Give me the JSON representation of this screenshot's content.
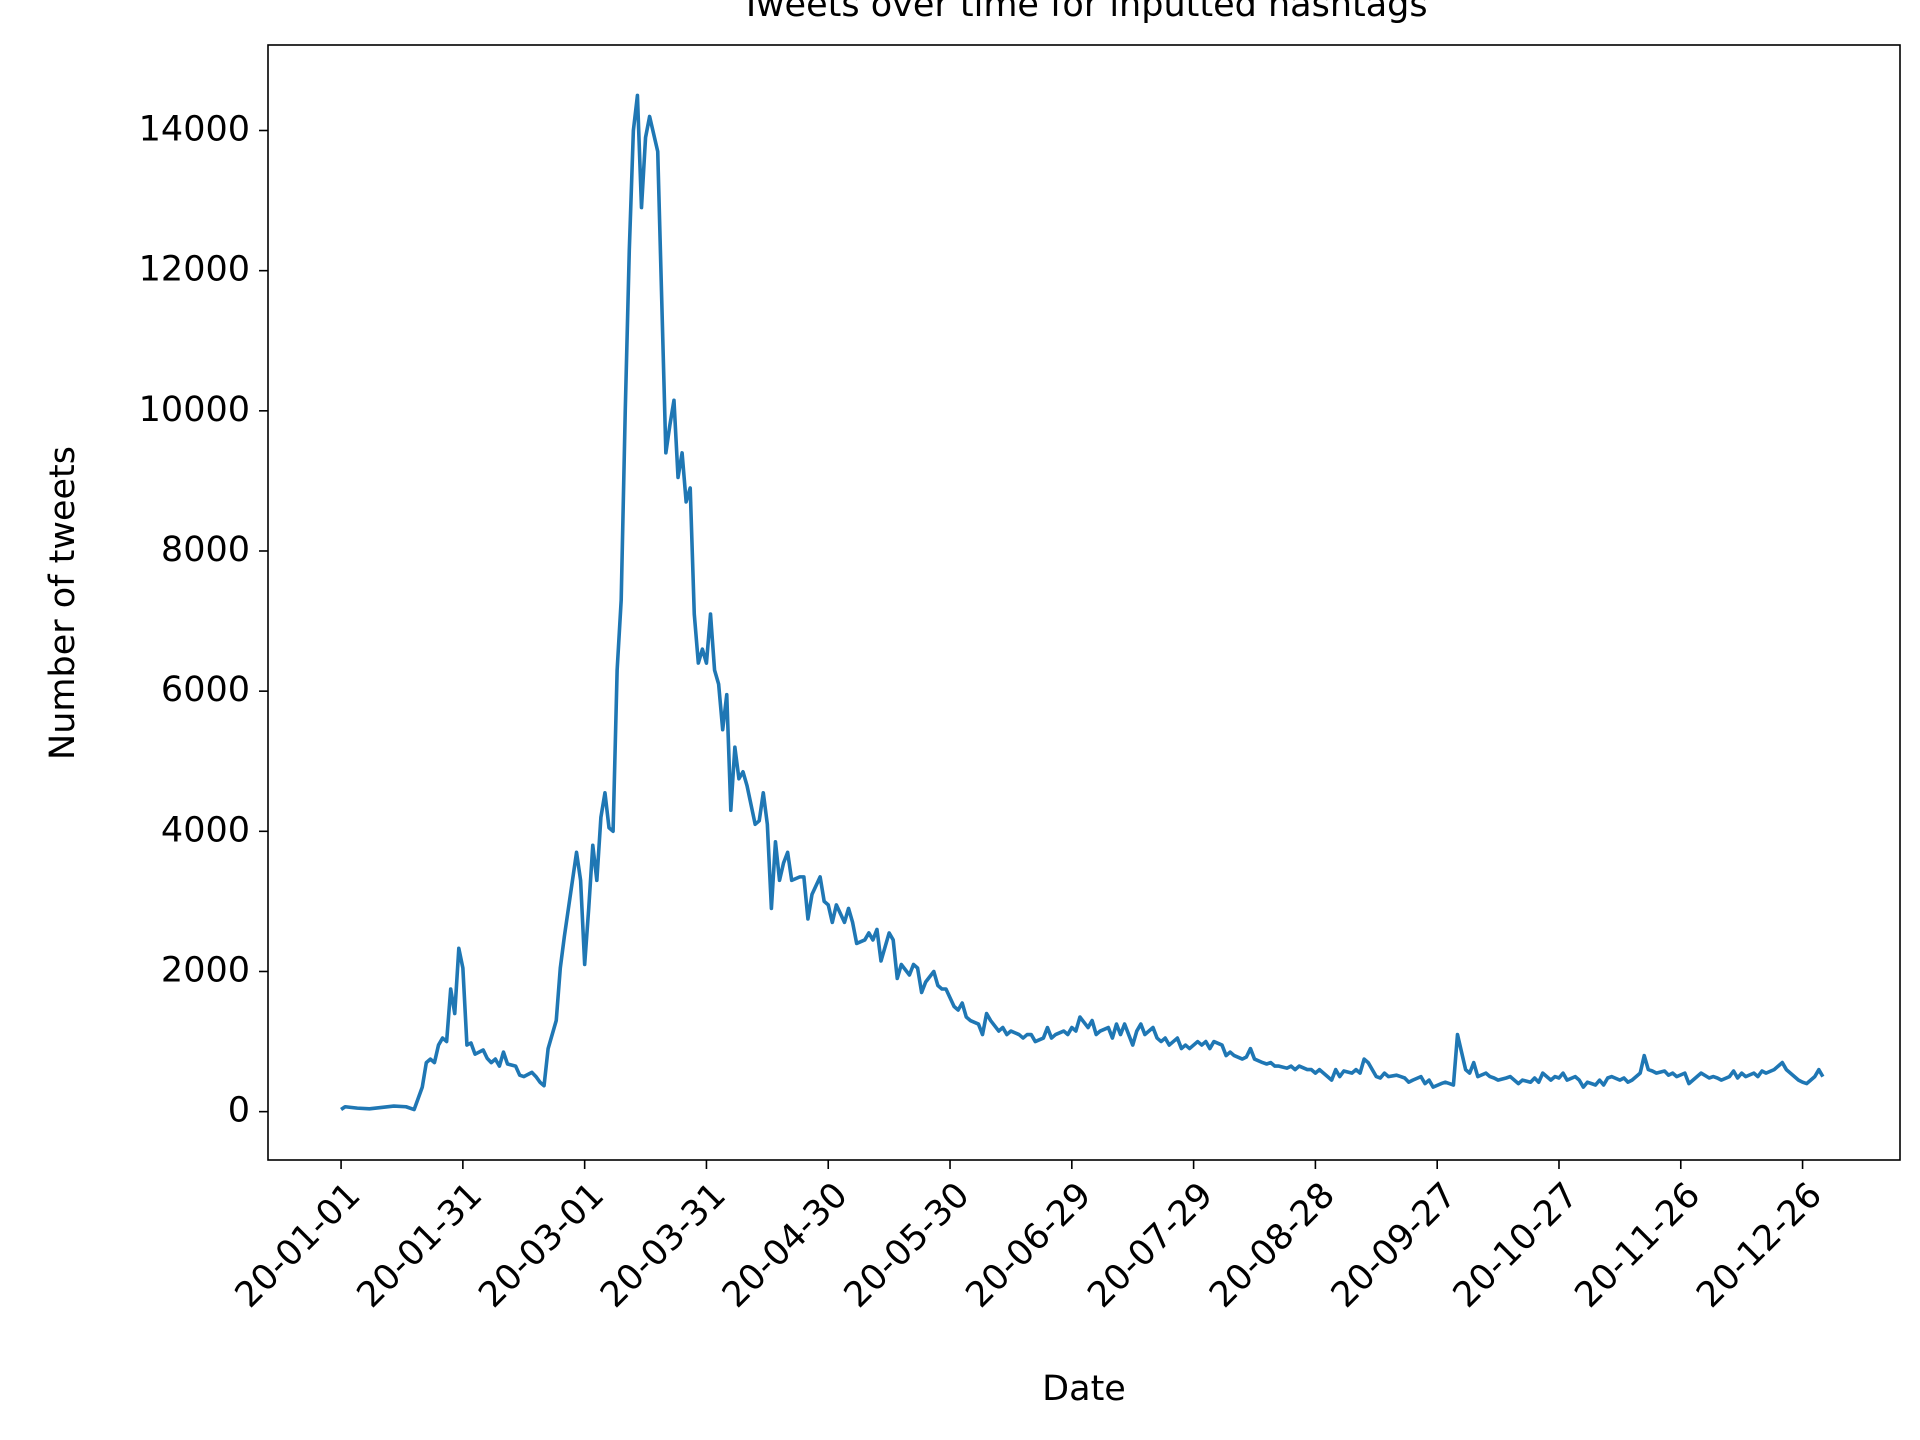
{
  "chart_data": {
    "type": "line",
    "title": "Tweets over time for inputted hashtags",
    "xlabel": "Date",
    "ylabel": "Number of tweets",
    "color": "#1f77b4",
    "xlim": [
      "19-12-14",
      "21-01-19"
    ],
    "xticks": [
      "20-01-01",
      "20-01-31",
      "20-03-01",
      "20-03-31",
      "20-04-30",
      "20-05-30",
      "20-06-29",
      "20-07-29",
      "20-08-28",
      "20-09-27",
      "20-10-27",
      "20-11-26",
      "20-12-26"
    ],
    "ylim": [
      -690,
      15220
    ],
    "yticks": [
      0,
      2000,
      4000,
      6000,
      8000,
      10000,
      12000,
      14000
    ],
    "x": [
      "20-01-01",
      "20-01-02",
      "20-01-05",
      "20-01-08",
      "20-01-11",
      "20-01-14",
      "20-01-17",
      "20-01-19",
      "20-01-21",
      "20-01-22",
      "20-01-23",
      "20-01-24",
      "20-01-25",
      "20-01-26",
      "20-01-27",
      "20-01-28",
      "20-01-29",
      "20-01-30",
      "20-01-31",
      "20-02-01",
      "20-02-02",
      "20-02-03",
      "20-02-05",
      "20-02-06",
      "20-02-07",
      "20-02-08",
      "20-02-09",
      "20-02-10",
      "20-02-11",
      "20-02-13",
      "20-02-14",
      "20-02-15",
      "20-02-17",
      "20-02-18",
      "20-02-19",
      "20-02-20",
      "20-02-21",
      "20-02-23",
      "20-02-24",
      "20-02-25",
      "20-02-27",
      "20-02-28",
      "20-02-29",
      "20-03-01",
      "20-03-02",
      "20-03-03",
      "20-03-04",
      "20-03-05",
      "20-03-06",
      "20-03-07",
      "20-03-08",
      "20-03-09",
      "20-03-10",
      "20-03-11",
      "20-03-12",
      "20-03-13",
      "20-03-14",
      "20-03-15",
      "20-03-16",
      "20-03-17",
      "20-03-19",
      "20-03-21",
      "20-03-22",
      "20-03-23",
      "20-03-24",
      "20-03-25",
      "20-03-26",
      "20-03-27",
      "20-03-28",
      "20-03-29",
      "20-03-30",
      "20-03-31",
      "20-04-01",
      "20-04-02",
      "20-04-03",
      "20-04-04",
      "20-04-05",
      "20-04-06",
      "20-04-07",
      "20-04-08",
      "20-04-09",
      "20-04-10",
      "20-04-12",
      "20-04-13",
      "20-04-14",
      "20-04-15",
      "20-04-16",
      "20-04-17",
      "20-04-18",
      "20-04-19",
      "20-04-20",
      "20-04-21",
      "20-04-23",
      "20-04-24",
      "20-04-25",
      "20-04-26",
      "20-04-28",
      "20-04-29",
      "20-04-30",
      "20-05-01",
      "20-05-02",
      "20-05-04",
      "20-05-05",
      "20-05-06",
      "20-05-07",
      "20-05-09",
      "20-05-10",
      "20-05-11",
      "20-05-12",
      "20-05-13",
      "20-05-15",
      "20-05-16",
      "20-05-17",
      "20-05-18",
      "20-05-20",
      "20-05-21",
      "20-05-22",
      "20-05-23",
      "20-05-24",
      "20-05-26",
      "20-05-27",
      "20-05-28",
      "20-05-29",
      "20-05-31",
      "20-06-01",
      "20-06-02",
      "20-06-03",
      "20-06-04",
      "20-06-06",
      "20-06-07",
      "20-06-08",
      "20-06-09",
      "20-06-11",
      "20-06-12",
      "20-06-13",
      "20-06-14",
      "20-06-16",
      "20-06-17",
      "20-06-18",
      "20-06-19",
      "20-06-20",
      "20-06-22",
      "20-06-23",
      "20-06-24",
      "20-06-25",
      "20-06-27",
      "20-06-28",
      "20-06-29",
      "20-06-30",
      "20-07-01",
      "20-07-03",
      "20-07-04",
      "20-07-05",
      "20-07-06",
      "20-07-08",
      "20-07-09",
      "20-07-10",
      "20-07-11",
      "20-07-12",
      "20-07-14",
      "20-07-15",
      "20-07-16",
      "20-07-17",
      "20-07-19",
      "20-07-20",
      "20-07-21",
      "20-07-22",
      "20-07-23",
      "20-07-25",
      "20-07-26",
      "20-07-27",
      "20-07-28",
      "20-07-30",
      "20-07-31",
      "20-08-01",
      "20-08-02",
      "20-08-03",
      "20-08-05",
      "20-08-06",
      "20-08-07",
      "20-08-08",
      "20-08-10",
      "20-08-11",
      "20-08-12",
      "20-08-13",
      "20-08-15",
      "20-08-16",
      "20-08-17",
      "20-08-18",
      "20-08-19",
      "20-08-21",
      "20-08-22",
      "20-08-23",
      "20-08-24",
      "20-08-26",
      "20-08-27",
      "20-08-28",
      "20-08-29",
      "20-08-30",
      "20-09-01",
      "20-09-02",
      "20-09-03",
      "20-09-04",
      "20-09-06",
      "20-09-07",
      "20-09-08",
      "20-09-09",
      "20-09-10",
      "20-09-12",
      "20-09-13",
      "20-09-14",
      "20-09-15",
      "20-09-17",
      "20-09-18",
      "20-09-19",
      "20-09-20",
      "20-09-21",
      "20-09-23",
      "20-09-24",
      "20-09-25",
      "20-09-26",
      "20-09-28",
      "20-09-29",
      "20-09-30",
      "20-10-01",
      "20-10-02",
      "20-10-04",
      "20-10-05",
      "20-10-06",
      "20-10-07",
      "20-10-09",
      "20-10-10",
      "20-10-11",
      "20-10-12",
      "20-10-14",
      "20-10-15",
      "20-10-16",
      "20-10-17",
      "20-10-18",
      "20-10-20",
      "20-10-21",
      "20-10-22",
      "20-10-23",
      "20-10-25",
      "20-10-26",
      "20-10-27",
      "20-10-28",
      "20-10-29",
      "20-10-31",
      "20-11-01",
      "20-11-02",
      "20-11-03",
      "20-11-05",
      "20-11-06",
      "20-11-07",
      "20-11-08",
      "20-11-09",
      "20-11-11",
      "20-11-12",
      "20-11-13",
      "20-11-14",
      "20-11-16",
      "20-11-17",
      "20-11-18",
      "20-11-19",
      "20-11-20",
      "20-11-22",
      "20-11-23",
      "20-11-24",
      "20-11-25",
      "20-11-27",
      "20-11-28",
      "20-11-29",
      "20-11-30",
      "20-12-01",
      "20-12-03",
      "20-12-04",
      "20-12-05",
      "20-12-06",
      "20-12-08",
      "20-12-09",
      "20-12-10",
      "20-12-11",
      "20-12-12",
      "20-12-14",
      "20-12-15",
      "20-12-16",
      "20-12-17",
      "20-12-19",
      "20-12-20",
      "20-12-21",
      "20-12-22",
      "20-12-24",
      "20-12-25",
      "20-12-26",
      "20-12-27",
      "20-12-28",
      "20-12-29",
      "20-12-30",
      "20-12-31"
    ],
    "values": [
      30,
      70,
      50,
      40,
      60,
      80,
      70,
      30,
      350,
      700,
      750,
      700,
      950,
      1050,
      1000,
      1750,
      1400,
      2330,
      2050,
      950,
      980,
      820,
      880,
      760,
      700,
      750,
      650,
      850,
      680,
      650,
      520,
      500,
      560,
      500,
      420,
      370,
      900,
      1300,
      2050,
      2500,
      3300,
      3700,
      3300,
      2100,
      2900,
      3800,
      3300,
      4200,
      4550,
      4050,
      4000,
      6300,
      7300,
      10000,
      12300,
      14000,
      14500,
      12900,
      13900,
      14200,
      13700,
      9400,
      9800,
      10150,
      9050,
      9400,
      8700,
      8900,
      7100,
      6400,
      6600,
      6400,
      7100,
      6300,
      6100,
      5450,
      5950,
      4300,
      5200,
      4750,
      4850,
      4650,
      4100,
      4150,
      4550,
      4100,
      2900,
      3850,
      3300,
      3550,
      3700,
      3300,
      3350,
      3350,
      2750,
      3100,
      3350,
      3000,
      2950,
      2700,
      2950,
      2700,
      2900,
      2700,
      2400,
      2450,
      2550,
      2450,
      2600,
      2150,
      2550,
      2450,
      1900,
      2100,
      1950,
      2100,
      2050,
      1700,
      1850,
      2000,
      1800,
      1750,
      1750,
      1500,
      1450,
      1550,
      1350,
      1300,
      1250,
      1100,
      1400,
      1300,
      1150,
      1200,
      1100,
      1150,
      1100,
      1050,
      1100,
      1100,
      1000,
      1050,
      1200,
      1050,
      1100,
      1150,
      1100,
      1200,
      1150,
      1350,
      1200,
      1300,
      1100,
      1150,
      1200,
      1050,
      1250,
      1100,
      1250,
      950,
      1150,
      1250,
      1100,
      1200,
      1050,
      1000,
      1050,
      950,
      1050,
      900,
      950,
      900,
      1000,
      950,
      1000,
      900,
      1000,
      950,
      800,
      850,
      800,
      750,
      780,
      900,
      750,
      700,
      680,
      700,
      650,
      650,
      620,
      650,
      600,
      650,
      600,
      600,
      550,
      600,
      550,
      450,
      600,
      500,
      580,
      550,
      600,
      550,
      750,
      700,
      500,
      480,
      550,
      500,
      520,
      500,
      480,
      420,
      450,
      500,
      400,
      450,
      350,
      400,
      420,
      400,
      380,
      1100,
      600,
      550,
      700,
      500,
      550,
      500,
      480,
      450,
      480,
      500,
      450,
      400,
      450,
      420,
      480,
      420,
      550,
      450,
      500,
      480,
      550,
      450,
      500,
      450,
      350,
      420,
      380,
      450,
      380,
      480,
      500,
      450,
      480,
      420,
      450,
      550,
      800,
      600,
      580,
      550,
      580,
      520,
      550,
      500,
      550,
      400,
      450,
      500,
      550,
      480,
      500,
      480,
      450,
      500,
      580,
      480,
      550,
      500,
      550,
      500,
      580,
      550,
      600,
      650,
      700,
      600,
      500,
      450,
      420,
      400,
      450,
      500,
      600,
      500
    ]
  }
}
